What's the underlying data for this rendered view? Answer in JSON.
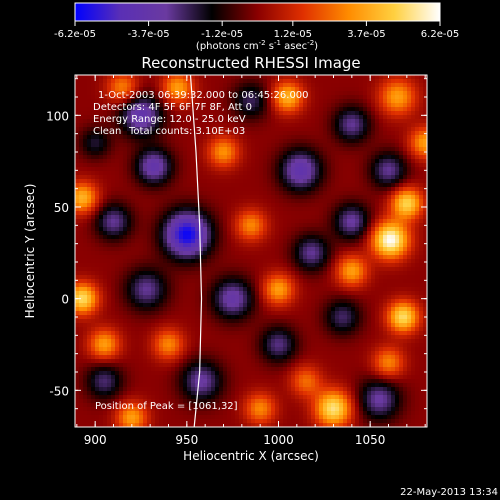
{
  "colorbar": {
    "ticks": [
      "-6.2e-05",
      "-3.7e-05",
      "-1.2e-05",
      "1.2e-05",
      "3.7e-05",
      "6.2e-05"
    ],
    "unit_label": "(photons cm",
    "unit_exp1": "-2",
    "unit_mid": " s",
    "unit_exp2": "-1",
    "unit_end": " asec",
    "unit_exp3": "-2",
    "unit_close": ")",
    "min": -6.2e-05,
    "max": 6.2e-05
  },
  "annotations": {
    "line1": "1-Oct-2003 06:39:32.000 to 06:45:26.000",
    "line2": "Detectors: 4F 5F 6F 7F 8F, Att 0",
    "line3": "Energy Range: 12.0 - 25.0 keV",
    "line4_left": "Clean",
    "line4_right": "Total counts: 3.10E+03",
    "peak": "Position of Peak = [1061,32]"
  },
  "footer": {
    "date": "22-May-2013 13:34"
  },
  "chart_data": {
    "type": "heatmap",
    "title": "Reconstructed RHESSI Image",
    "xlabel": "Heliocentric X (arcsec)",
    "ylabel": "Heliocentric Y (arcsec)",
    "xlim": [
      889,
      1081
    ],
    "ylim": [
      -70,
      122
    ],
    "xticks": [
      900,
      950,
      1000,
      1050
    ],
    "yticks": [
      -50,
      0,
      50,
      100
    ],
    "peak": [
      1061,
      32
    ],
    "colormap_stops": [
      "#0000ff",
      "#5a2fb5",
      "#6a3aa0",
      "#000000",
      "#8a0000",
      "#e03000",
      "#ff8c00",
      "#ffd040",
      "#ffffff"
    ],
    "limb_curve": [
      [
        952,
        122
      ],
      [
        955,
        80
      ],
      [
        957,
        40
      ],
      [
        958,
        0
      ],
      [
        957,
        -40
      ],
      [
        954,
        -70
      ]
    ],
    "blobs": [
      {
        "x": 950,
        "y": 35,
        "v": -6e-05,
        "s": 9
      },
      {
        "x": 925,
        "y": 100,
        "v": -4e-05,
        "s": 8
      },
      {
        "x": 932,
        "y": 72,
        "v": -3.8e-05,
        "s": 7
      },
      {
        "x": 910,
        "y": 42,
        "v": -3e-05,
        "s": 7
      },
      {
        "x": 928,
        "y": 5,
        "v": -3e-05,
        "s": 8
      },
      {
        "x": 975,
        "y": 0,
        "v": -3.5e-05,
        "s": 8
      },
      {
        "x": 1012,
        "y": 70,
        "v": -4e-05,
        "s": 8
      },
      {
        "x": 1040,
        "y": 95,
        "v": -3e-05,
        "s": 7
      },
      {
        "x": 1060,
        "y": 70,
        "v": -3e-05,
        "s": 7
      },
      {
        "x": 1018,
        "y": 25,
        "v": -3e-05,
        "s": 7
      },
      {
        "x": 1040,
        "y": 42,
        "v": -3.2e-05,
        "s": 7
      },
      {
        "x": 1000,
        "y": -25,
        "v": -2.8e-05,
        "s": 7
      },
      {
        "x": 958,
        "y": -45,
        "v": -3.2e-05,
        "s": 8
      },
      {
        "x": 1055,
        "y": -55,
        "v": -3.2e-05,
        "s": 8
      },
      {
        "x": 905,
        "y": -45,
        "v": -2.6e-05,
        "s": 7
      },
      {
        "x": 1035,
        "y": -10,
        "v": -2.5e-05,
        "s": 7
      },
      {
        "x": 985,
        "y": 108,
        "v": -2.4e-05,
        "s": 7
      },
      {
        "x": 900,
        "y": 85,
        "v": -2e-05,
        "s": 6
      },
      {
        "x": 945,
        "y": 115,
        "v": 3.5e-05,
        "s": 6
      },
      {
        "x": 1005,
        "y": 110,
        "v": 4e-05,
        "s": 6
      },
      {
        "x": 1065,
        "y": 110,
        "v": 3.5e-05,
        "s": 7
      },
      {
        "x": 1061,
        "y": 32,
        "v": 6.2e-05,
        "s": 7
      },
      {
        "x": 1070,
        "y": 52,
        "v": 4.8e-05,
        "s": 6
      },
      {
        "x": 1068,
        "y": -10,
        "v": 5e-05,
        "s": 6
      },
      {
        "x": 1030,
        "y": -60,
        "v": 5.2e-05,
        "s": 7
      },
      {
        "x": 1000,
        "y": 5,
        "v": 3.5e-05,
        "s": 6
      },
      {
        "x": 985,
        "y": 40,
        "v": 3e-05,
        "s": 6
      },
      {
        "x": 1040,
        "y": 15,
        "v": 3.5e-05,
        "s": 6
      },
      {
        "x": 893,
        "y": 0,
        "v": 5e-05,
        "s": 6
      },
      {
        "x": 893,
        "y": 55,
        "v": 4e-05,
        "s": 6
      },
      {
        "x": 905,
        "y": -25,
        "v": 3.5e-05,
        "s": 6
      },
      {
        "x": 915,
        "y": 115,
        "v": 3e-05,
        "s": 6
      },
      {
        "x": 970,
        "y": 80,
        "v": 3.2e-05,
        "s": 6
      },
      {
        "x": 940,
        "y": -25,
        "v": 3e-05,
        "s": 6
      },
      {
        "x": 920,
        "y": -65,
        "v": 3.5e-05,
        "s": 6
      },
      {
        "x": 990,
        "y": -60,
        "v": 3e-05,
        "s": 6
      },
      {
        "x": 1015,
        "y": -45,
        "v": 2.5e-05,
        "s": 6
      },
      {
        "x": 1080,
        "y": 85,
        "v": 3.5e-05,
        "s": 6
      },
      {
        "x": 1060,
        "y": -35,
        "v": 3e-05,
        "s": 6
      }
    ]
  }
}
